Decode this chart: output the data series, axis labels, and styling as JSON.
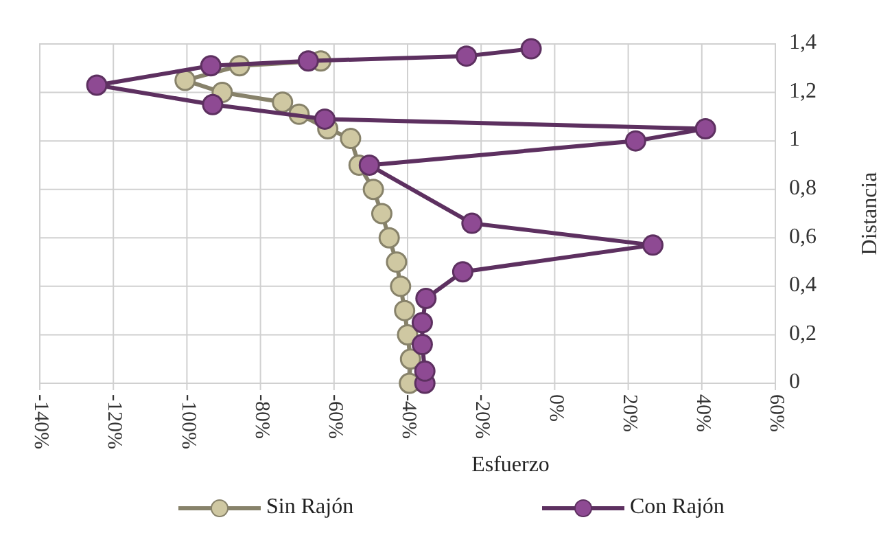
{
  "chart_data": {
    "type": "line",
    "xlabel": "Esfuerzo",
    "ylabel": "Distancia",
    "xlim": [
      -140,
      60
    ],
    "xticks": [
      {
        "value": -140,
        "label": "-140%"
      },
      {
        "value": -120,
        "label": "-120%"
      },
      {
        "value": -100,
        "label": "-100%"
      },
      {
        "value": -80,
        "label": "-80%"
      },
      {
        "value": -60,
        "label": "-60%"
      },
      {
        "value": -40,
        "label": "-40%"
      },
      {
        "value": -20,
        "label": "-20%"
      },
      {
        "value": 0,
        "label": "0%"
      },
      {
        "value": 20,
        "label": "20%"
      },
      {
        "value": 40,
        "label": "40%"
      },
      {
        "value": 60,
        "label": "60%"
      }
    ],
    "ylim": [
      0,
      1.4
    ],
    "yticks": [
      0,
      {
        "value": 0.2,
        "label": "0,2"
      },
      {
        "value": 0.4,
        "label": "0,4"
      },
      {
        "value": 0.6,
        "label": "0,6"
      },
      {
        "value": 0.8,
        "label": "0,8"
      },
      1,
      {
        "value": 1.2,
        "label": "1,2"
      },
      {
        "value": 1.4,
        "label": "1,4"
      }
    ],
    "grid": true,
    "legend": "bottom",
    "marker": "circle",
    "line_style": "solid",
    "series": [
      {
        "name": "Sin Rajón",
        "color": "#cfc8a2",
        "x": [
          -39.5,
          -39.2,
          -40,
          -40.8,
          -41.9,
          -43,
          -45,
          -47,
          -49.3,
          -53.2,
          -55.5,
          -61.7,
          -69.5,
          -74,
          -90.4,
          -100.5,
          -85.7,
          -63.6
        ],
        "values": [
          0,
          0.1,
          0.2,
          0.3,
          0.4,
          0.5,
          0.6,
          0.7,
          0.8,
          0.9,
          1.01,
          1.05,
          1.11,
          1.16,
          1.2,
          1.25,
          1.31,
          1.33
        ]
      },
      {
        "name": "Con Rajón",
        "color": "#8e4a93",
        "x": [
          -35.3,
          -35.3,
          -36,
          -36,
          -35,
          -25,
          26.7,
          -22.5,
          -50.4,
          22,
          41,
          -62.5,
          -93,
          -124.5,
          -93.5,
          -67,
          -24,
          -6.4
        ],
        "values": [
          0,
          0.05,
          0.16,
          0.25,
          0.35,
          0.46,
          0.57,
          0.66,
          0.9,
          1,
          1.05,
          1.09,
          1.15,
          1.23,
          1.31,
          1.33,
          1.35,
          1.38
        ]
      }
    ]
  }
}
